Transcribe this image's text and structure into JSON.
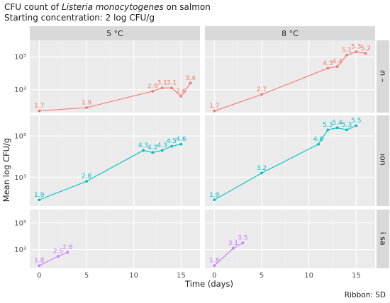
{
  "title_line1_prefix": "CFU count of ",
  "title_line1_italic": "Listeria monocytogenes",
  "title_line1_suffix": " on salmon",
  "subtitle": "Starting concentration: 2 log CFU/g",
  "caption": "Ribbon: SD",
  "colors": {
    "Norwegian – low NaCl": "#F8766D",
    "Salmon fillet": "#00BFC4",
    "Sushi salmon": "#C77CFF"
  },
  "chart_data": {
    "type": "line",
    "xlabel": "Time (days)",
    "ylabel": "Mean log CFU/g",
    "xlim": [
      -1,
      17
    ],
    "ylim_log": [
      1.6,
      6.0
    ],
    "x_ticks": [
      0,
      5,
      10,
      15
    ],
    "y_ticks": [
      {
        "value": 3,
        "label": "10³"
      },
      {
        "value": 5,
        "label": "10⁵"
      }
    ],
    "columns": [
      "5 °C",
      "8 °C"
    ],
    "rows": [
      "Norwegian – low NaCl",
      "Salmon fillet",
      "Sushi salmon"
    ],
    "panels": [
      {
        "row": "Norwegian – low NaCl",
        "col": "5 °C",
        "x": [
          0,
          5,
          12,
          13,
          14,
          15,
          16
        ],
        "y": [
          1.7,
          1.9,
          2.9,
          3.1,
          3.1,
          2.6,
          3.4
        ],
        "labels": [
          "1.7",
          "1.9",
          "2.9",
          "3.1",
          "3.1",
          "2.6",
          "3.4"
        ]
      },
      {
        "row": "Norwegian – low NaCl",
        "col": "8 °C",
        "x": [
          0,
          5,
          12,
          13,
          14,
          15,
          16
        ],
        "y": [
          1.7,
          2.7,
          4.3,
          4.4,
          5.1,
          5.3,
          5.2
        ],
        "labels": [
          "1.7",
          "2.7",
          "4.3",
          "4.4",
          "5.1",
          "5.3",
          "5.2"
        ]
      },
      {
        "row": "Salmon fillet",
        "col": "5 °C",
        "x": [
          0,
          5,
          11,
          12,
          13,
          14,
          15
        ],
        "y": [
          1.9,
          2.8,
          4.3,
          4.2,
          4.3,
          4.5,
          4.6
        ],
        "labels": [
          "1.9",
          "2.8",
          "4.3",
          "4.2",
          "4.3",
          "4.5",
          "4.6"
        ]
      },
      {
        "row": "Salmon fillet",
        "col": "8 °C",
        "x": [
          0,
          5,
          11,
          12,
          13,
          14,
          15
        ],
        "y": [
          1.9,
          3.2,
          4.6,
          5.3,
          5.4,
          5.3,
          5.5
        ],
        "labels": [
          "1.9",
          "3.2",
          "4.6",
          "5.3",
          "5.4",
          "5.3",
          "5.5"
        ]
      },
      {
        "row": "Sushi salmon",
        "col": "5 °C",
        "x": [
          0,
          2,
          3
        ],
        "y": [
          1.8,
          2.5,
          2.8
        ],
        "labels": [
          "1.8",
          "2.5",
          "2.8"
        ]
      },
      {
        "row": "Sushi salmon",
        "col": "8 °C",
        "x": [
          0,
          2,
          3
        ],
        "y": [
          1.8,
          3.1,
          3.5
        ],
        "labels": [
          "1.8",
          "3.1",
          "3.5"
        ]
      }
    ],
    "ribbon": "SD",
    "grid": true,
    "legend": "none"
  }
}
